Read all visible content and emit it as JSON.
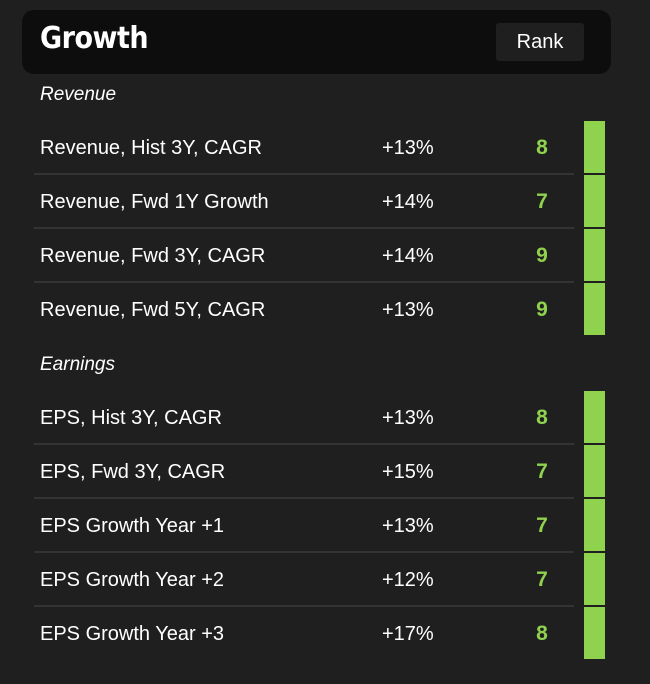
{
  "header": {
    "title": "Growth",
    "rank_button": "Rank"
  },
  "sections": [
    {
      "label": "Revenue",
      "rows": [
        {
          "name": "Revenue, Hist 3Y, CAGR",
          "value": "+13%",
          "rank": "8"
        },
        {
          "name": "Revenue, Fwd 1Y Growth",
          "value": "+14%",
          "rank": "7"
        },
        {
          "name": "Revenue, Fwd 3Y, CAGR",
          "value": "+14%",
          "rank": "9"
        },
        {
          "name": "Revenue, Fwd 5Y, CAGR",
          "value": "+13%",
          "rank": "9"
        }
      ]
    },
    {
      "label": "Earnings",
      "rows": [
        {
          "name": "EPS, Hist 3Y, CAGR",
          "value": "+13%",
          "rank": "8"
        },
        {
          "name": "EPS, Fwd 3Y, CAGR",
          "value": "+15%",
          "rank": "7"
        },
        {
          "name": "EPS Growth Year +1",
          "value": "+13%",
          "rank": "7"
        },
        {
          "name": "EPS Growth Year +2",
          "value": "+12%",
          "rank": "7"
        },
        {
          "name": "EPS Growth Year +3",
          "value": "+17%",
          "rank": "8"
        }
      ]
    }
  ],
  "colors": {
    "accent": "#8fd24e",
    "background": "#1f1f1f",
    "header_background": "#0d0d0d"
  }
}
